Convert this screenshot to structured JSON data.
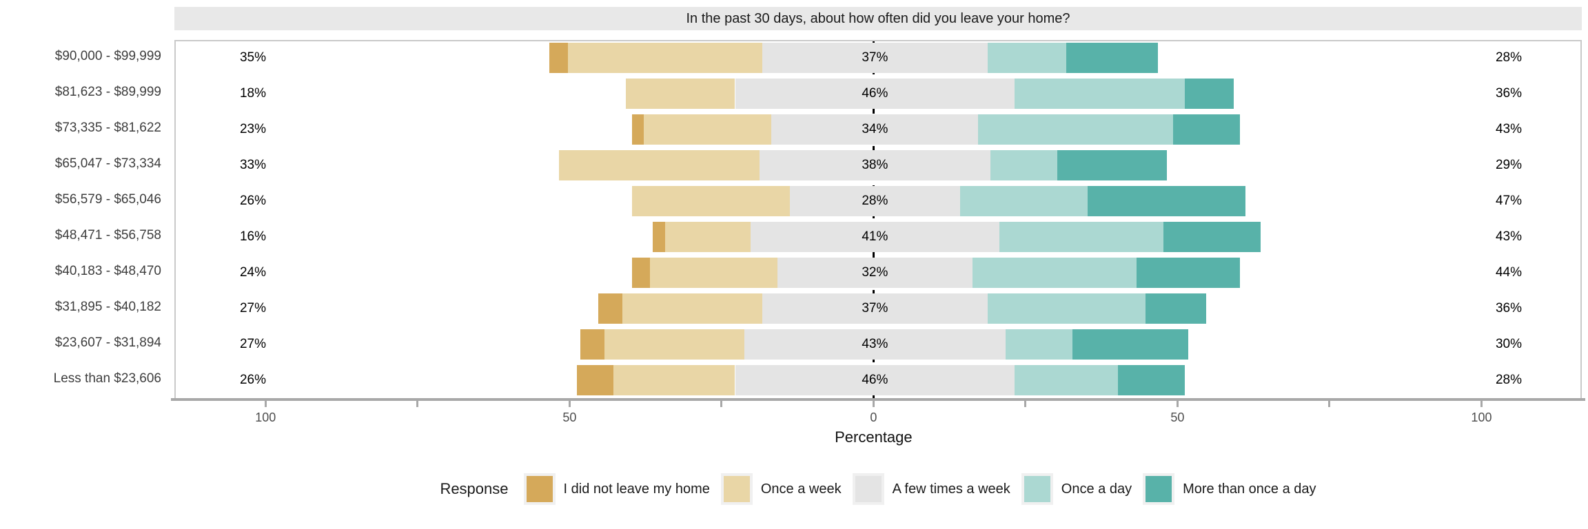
{
  "chart_data": {
    "type": "bar",
    "variant": "diverging-stacked-horizontal-likert",
    "title": "In the past 30 days, about how often did you leave your home?",
    "xlabel": "Percentage",
    "legend_title": "Response",
    "legend_position": "bottom",
    "grid": false,
    "axis": {
      "xlim": [
        -115,
        116.5
      ],
      "tick_values": [
        -100,
        -50,
        0,
        50,
        100
      ],
      "tick_labels": [
        "100",
        "50",
        "0",
        "50",
        "100"
      ],
      "minor_tick_values": [
        -75,
        -25,
        25,
        75
      ],
      "zero_line": "dashed"
    },
    "levels": [
      {
        "name": "I did not leave my home",
        "color": "#d5a95a"
      },
      {
        "name": "Once a week",
        "color": "#e9d6a6"
      },
      {
        "name": "A few times a week",
        "color": "#e4e4e4"
      },
      {
        "name": "Once a day",
        "color": "#abd8d2"
      },
      {
        "name": "More than once a day",
        "color": "#58b2a9"
      }
    ],
    "rows": [
      {
        "category": "$90,000 - $99,999",
        "values": [
          3,
          32,
          37,
          13,
          15
        ],
        "left_label": "35%",
        "center_label": "37%",
        "right_label": "28%"
      },
      {
        "category": "$81,623 - $89,999",
        "values": [
          0,
          18,
          46,
          28,
          8
        ],
        "left_label": "18%",
        "center_label": "46%",
        "right_label": "36%"
      },
      {
        "category": "$73,335 - $81,622",
        "values": [
          2,
          21,
          34,
          32,
          11
        ],
        "left_label": "23%",
        "center_label": "34%",
        "right_label": "43%"
      },
      {
        "category": "$65,047 - $73,334",
        "values": [
          0,
          33,
          38,
          11,
          18
        ],
        "left_label": "33%",
        "center_label": "38%",
        "right_label": "29%"
      },
      {
        "category": "$56,579 - $65,046",
        "values": [
          0,
          26,
          28,
          21,
          26
        ],
        "left_label": "26%",
        "center_label": "28%",
        "right_label": "47%"
      },
      {
        "category": "$48,471 - $56,758",
        "values": [
          2,
          14,
          41,
          27,
          16
        ],
        "left_label": "16%",
        "center_label": "41%",
        "right_label": "43%"
      },
      {
        "category": "$40,183 - $48,470",
        "values": [
          3,
          21,
          32,
          27,
          17
        ],
        "left_label": "24%",
        "center_label": "32%",
        "right_label": "44%"
      },
      {
        "category": "$31,895 - $40,182",
        "values": [
          4,
          23,
          37,
          26,
          10
        ],
        "left_label": "27%",
        "center_label": "37%",
        "right_label": "36%"
      },
      {
        "category": "$23,607 - $31,894",
        "values": [
          4,
          23,
          43,
          11,
          19
        ],
        "left_label": "27%",
        "center_label": "43%",
        "right_label": "30%"
      },
      {
        "category": "Less than $23,606",
        "values": [
          6,
          20,
          46,
          17,
          11
        ],
        "left_label": "26%",
        "center_label": "46%",
        "right_label": "28%"
      }
    ],
    "colors": {
      "strip_background": "#e8e8e8",
      "panel_border": "#c9c9c9",
      "axis_line": "#a8a8a8",
      "zero_line": "#000000",
      "legend_key_background": "#f0f0f0"
    }
  }
}
